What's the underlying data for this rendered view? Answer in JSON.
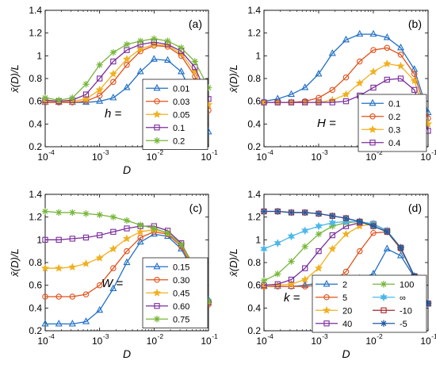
{
  "chart_data": [
    {
      "panel": "(a)",
      "type": "line",
      "xscale": "log",
      "xlabel": "D",
      "ylabel": "x̄(D)/L",
      "xlim": [
        0.0001,
        0.1
      ],
      "ylim": [
        0.2,
        1.4
      ],
      "xticks": [
        "10",
        "10",
        "10",
        "10"
      ],
      "xtick_exps": [
        "-4",
        "-3",
        "-2",
        "-1"
      ],
      "yticks": [
        "0.2",
        "0.4",
        "0.6",
        "0.8",
        "1",
        "1.2",
        "1.4"
      ],
      "legend_title": "h =",
      "x": [
        0.0001,
        0.000178,
        0.000316,
        0.000562,
        0.001,
        0.00178,
        0.00316,
        0.00562,
        0.01,
        0.0178,
        0.0316,
        0.0562,
        0.1
      ],
      "series": [
        {
          "name": "0.01",
          "marker": "triangle",
          "color": "#1f6fc5",
          "values": [
            0.59,
            0.59,
            0.59,
            0.59,
            0.6,
            0.63,
            0.72,
            0.86,
            0.97,
            0.96,
            0.86,
            0.62,
            0.33
          ]
        },
        {
          "name": "0.03",
          "marker": "circle",
          "color": "#e2511a",
          "values": [
            0.59,
            0.59,
            0.59,
            0.6,
            0.65,
            0.77,
            0.92,
            1.04,
            1.09,
            1.08,
            1.0,
            0.82,
            0.52
          ]
        },
        {
          "name": "0.05",
          "marker": "star",
          "color": "#f0b020",
          "values": [
            0.6,
            0.6,
            0.6,
            0.62,
            0.7,
            0.84,
            0.97,
            1.06,
            1.1,
            1.09,
            1.02,
            0.86,
            0.57
          ]
        },
        {
          "name": "0.1",
          "marker": "square",
          "color": "#7a2d9c",
          "values": [
            0.61,
            0.6,
            0.61,
            0.66,
            0.8,
            0.95,
            1.05,
            1.1,
            1.12,
            1.1,
            1.04,
            0.9,
            0.62
          ]
        },
        {
          "name": "0.2",
          "marker": "asterisk",
          "color": "#77b63a",
          "values": [
            0.63,
            0.61,
            0.63,
            0.75,
            0.92,
            1.03,
            1.1,
            1.13,
            1.15,
            1.13,
            1.07,
            0.95,
            0.72
          ]
        }
      ]
    },
    {
      "panel": "(b)",
      "type": "line",
      "xscale": "log",
      "xlabel": "",
      "ylabel": "x̄(D)/L",
      "xlim": [
        0.0001,
        0.1
      ],
      "ylim": [
        0.2,
        1.4
      ],
      "xticks": [
        "10",
        "10",
        "10",
        "10"
      ],
      "xtick_exps": [
        "-4",
        "-3",
        "-2",
        "-1"
      ],
      "yticks": [
        "0.2",
        "0.4",
        "0.6",
        "0.8",
        "1",
        "1.2",
        "1.4"
      ],
      "legend_title": "H =",
      "x": [
        0.0001,
        0.000178,
        0.000316,
        0.000562,
        0.001,
        0.00178,
        0.00316,
        0.00562,
        0.01,
        0.0178,
        0.0316,
        0.0562,
        0.1
      ],
      "series": [
        {
          "name": "0.1",
          "marker": "triangle",
          "color": "#1f6fc5",
          "values": [
            0.6,
            0.62,
            0.66,
            0.72,
            0.84,
            1.02,
            1.14,
            1.19,
            1.19,
            1.16,
            1.07,
            0.88,
            0.5
          ]
        },
        {
          "name": "0.2",
          "marker": "circle",
          "color": "#e2511a",
          "values": [
            0.59,
            0.59,
            0.59,
            0.6,
            0.63,
            0.7,
            0.81,
            0.95,
            1.05,
            1.07,
            1.01,
            0.84,
            0.45
          ]
        },
        {
          "name": "0.3",
          "marker": "star",
          "color": "#f0b020",
          "values": [
            0.59,
            0.59,
            0.59,
            0.59,
            0.59,
            0.61,
            0.66,
            0.76,
            0.86,
            0.93,
            0.91,
            0.78,
            0.4
          ]
        },
        {
          "name": "0.4",
          "marker": "square",
          "color": "#7a2d9c",
          "values": [
            0.59,
            0.59,
            0.59,
            0.59,
            0.59,
            0.59,
            0.6,
            0.65,
            0.72,
            0.79,
            0.8,
            0.7,
            0.34
          ]
        }
      ]
    },
    {
      "panel": "(c)",
      "type": "line",
      "xscale": "log",
      "xlabel": "D",
      "ylabel": "x̄(D)/L",
      "xlim": [
        0.0001,
        0.1
      ],
      "ylim": [
        0.2,
        1.4
      ],
      "xticks": [
        "10",
        "10",
        "10",
        "10"
      ],
      "xtick_exps": [
        "-4",
        "-3",
        "-2",
        "-1"
      ],
      "yticks": [
        "0.2",
        "0.4",
        "0.6",
        "0.8",
        "1",
        "1.2",
        "1.4"
      ],
      "legend_title": "W =",
      "x": [
        0.0001,
        0.000178,
        0.000316,
        0.000562,
        0.001,
        0.00178,
        0.00316,
        0.00562,
        0.01,
        0.0178,
        0.0316,
        0.0562,
        0.1
      ],
      "series": [
        {
          "name": "0.15",
          "marker": "triangle",
          "color": "#1f6fc5",
          "values": [
            0.26,
            0.26,
            0.26,
            0.28,
            0.38,
            0.57,
            0.8,
            0.98,
            1.05,
            1.03,
            0.92,
            0.7,
            0.47
          ]
        },
        {
          "name": "0.30",
          "marker": "circle",
          "color": "#e2511a",
          "values": [
            0.5,
            0.5,
            0.5,
            0.52,
            0.6,
            0.75,
            0.9,
            1.02,
            1.07,
            1.05,
            0.94,
            0.72,
            0.43
          ]
        },
        {
          "name": "0.45",
          "marker": "star",
          "color": "#f0b020",
          "values": [
            0.75,
            0.75,
            0.76,
            0.79,
            0.84,
            0.92,
            1.01,
            1.07,
            1.09,
            1.06,
            0.96,
            0.74,
            0.44
          ]
        },
        {
          "name": "0.60",
          "marker": "square",
          "color": "#7a2d9c",
          "values": [
            1.0,
            1.0,
            1.01,
            1.02,
            1.04,
            1.07,
            1.1,
            1.12,
            1.12,
            1.08,
            0.97,
            0.75,
            0.45
          ]
        },
        {
          "name": "0.75",
          "marker": "asterisk",
          "color": "#77b63a",
          "values": [
            1.25,
            1.24,
            1.24,
            1.23,
            1.22,
            1.2,
            1.17,
            1.13,
            1.1,
            1.06,
            0.96,
            0.76,
            0.46
          ]
        }
      ]
    },
    {
      "panel": "(d)",
      "type": "line",
      "xscale": "log",
      "xlabel": "D",
      "ylabel": "x̄(D)/L",
      "xlim": [
        0.0001,
        0.1
      ],
      "ylim": [
        0.2,
        1.4
      ],
      "xticks": [
        "10",
        "10",
        "10",
        "10"
      ],
      "xtick_exps": [
        "-4",
        "-3",
        "-2",
        "-1"
      ],
      "yticks": [
        "0.2",
        "0.4",
        "0.6",
        "0.8",
        "1",
        "1.2",
        "1.4"
      ],
      "legend_title": "k =",
      "x": [
        0.0001,
        0.000178,
        0.000316,
        0.000562,
        0.001,
        0.00178,
        0.00316,
        0.00562,
        0.01,
        0.0178,
        0.0316,
        0.0562,
        0.1
      ],
      "series": [
        {
          "name": "2",
          "marker": "triangle",
          "color": "#1f6fc5",
          "values": [
            0.59,
            0.59,
            0.59,
            0.6,
            0.62,
            0.64,
            0.65,
            0.66,
            0.7,
            0.92,
            0.86,
            0.67,
            0.44
          ]
        },
        {
          "name": "5",
          "marker": "circle",
          "color": "#e2511a",
          "values": [
            0.59,
            0.59,
            0.59,
            0.59,
            0.6,
            0.63,
            0.72,
            0.9,
            1.06,
            1.07,
            0.92,
            0.68,
            0.44
          ]
        },
        {
          "name": "20",
          "marker": "star",
          "color": "#f0b020",
          "values": [
            0.59,
            0.6,
            0.61,
            0.65,
            0.75,
            0.92,
            1.05,
            1.12,
            1.14,
            1.08,
            0.93,
            0.68,
            0.44
          ]
        },
        {
          "name": "40",
          "marker": "square",
          "color": "#7a2d9c",
          "values": [
            0.6,
            0.61,
            0.65,
            0.75,
            0.9,
            1.04,
            1.12,
            1.15,
            1.14,
            1.08,
            0.93,
            0.68,
            0.44
          ]
        },
        {
          "name": "100",
          "marker": "asterisk",
          "color": "#77b63a",
          "values": [
            0.64,
            0.7,
            0.81,
            0.94,
            1.05,
            1.12,
            1.15,
            1.16,
            1.14,
            1.08,
            0.93,
            0.68,
            0.44
          ]
        },
        {
          "name": "∞",
          "marker": "star6",
          "color": "#4db8e8",
          "values": [
            0.92,
            0.97,
            1.03,
            1.08,
            1.12,
            1.15,
            1.16,
            1.16,
            1.14,
            1.08,
            0.93,
            0.68,
            0.44
          ]
        },
        {
          "name": "-10",
          "marker": "square",
          "color": "#a8242b",
          "values": [
            1.25,
            1.25,
            1.24,
            1.24,
            1.23,
            1.21,
            1.19,
            1.16,
            1.12,
            1.07,
            0.93,
            0.68,
            0.44
          ]
        },
        {
          "name": "-5",
          "marker": "asterisk",
          "color": "#1f5aa0",
          "values": [
            1.25,
            1.25,
            1.24,
            1.24,
            1.23,
            1.21,
            1.19,
            1.16,
            1.12,
            1.07,
            0.93,
            0.68,
            0.44
          ]
        }
      ]
    }
  ]
}
